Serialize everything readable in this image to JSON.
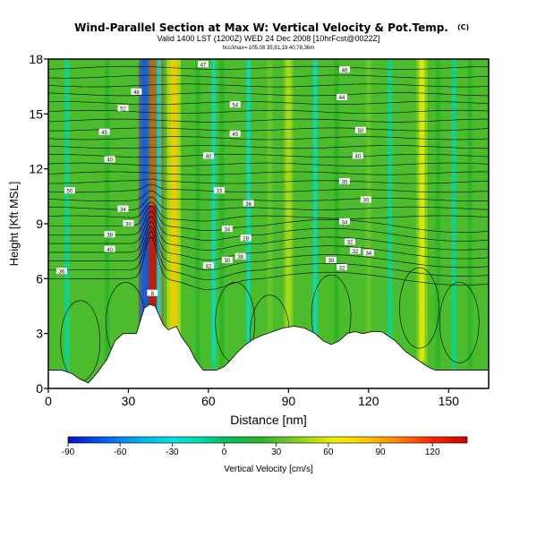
{
  "chart_data": {
    "type": "heatmap",
    "title": "Wind-Parallel Section at Max W: Vertical Velocity & Pot.Temp.",
    "title_suffix": "(C)",
    "subtitle": "Valid 1400 LST (1200Z) WED 24 Dec 2008 [10hrFcst@0022Z]",
    "subtitle2": "hcc/imax=-105,08 35,81,19 40,78,36m",
    "xlabel": "Distance [nm]",
    "ylabel": "Height [Kft MSL]",
    "xlim": [
      0,
      165
    ],
    "ylim": [
      0,
      18
    ],
    "x_ticks": [
      "0",
      "30",
      "60",
      "90",
      "120",
      "150"
    ],
    "y_ticks": [
      "0",
      "3",
      "6",
      "9",
      "12",
      "15",
      "18"
    ],
    "colorbar": {
      "label": "Vertical Velocity [cm/s]",
      "range": [
        -90,
        140
      ],
      "tick_labels": [
        "-90",
        "-60",
        "-30",
        "0",
        "30",
        "60",
        "90",
        "120"
      ]
    },
    "terrain_profile": {
      "x": [
        0,
        5,
        9,
        12,
        15,
        18,
        20,
        22,
        25,
        28,
        31,
        33,
        36,
        38,
        40,
        43,
        45,
        48,
        50,
        53,
        55,
        58,
        60,
        63,
        66,
        68,
        71,
        74,
        77,
        80,
        84,
        88,
        92,
        96,
        100,
        103,
        106,
        109,
        112,
        115,
        118,
        121,
        125,
        130,
        134,
        138,
        142,
        145,
        150,
        155,
        160,
        165
      ],
      "height_kft": [
        1.0,
        1.0,
        0.8,
        0.5,
        0.3,
        0.8,
        1.2,
        1.6,
        2.6,
        3.0,
        3.0,
        3.0,
        4.4,
        4.6,
        4.5,
        3.5,
        3.2,
        3.4,
        2.8,
        2.2,
        1.6,
        1.0,
        1.0,
        1.0,
        1.2,
        1.5,
        2.0,
        2.4,
        2.7,
        2.9,
        3.1,
        3.3,
        3.4,
        3.3,
        3.0,
        2.6,
        2.4,
        2.6,
        3.0,
        3.1,
        3.0,
        3.1,
        3.1,
        2.6,
        2.0,
        1.6,
        1.2,
        1.0,
        1.0,
        1.0,
        1.0,
        1.0
      ]
    },
    "updraft_columns": [
      {
        "x": 22,
        "w": 25
      },
      {
        "x": 38.5,
        "w": 135
      },
      {
        "x": 47,
        "w": 70
      },
      {
        "x": 56,
        "w": 15
      },
      {
        "x": 65,
        "w": 25
      },
      {
        "x": 83,
        "w": 30
      },
      {
        "x": 90,
        "w": 45
      },
      {
        "x": 108,
        "w": 25
      },
      {
        "x": 120,
        "w": 30
      },
      {
        "x": 140,
        "w": 55
      },
      {
        "x": 146,
        "w": 20
      },
      {
        "x": 158,
        "w": 25
      }
    ],
    "downdraft_columns": [
      {
        "x": 7,
        "w": -10
      },
      {
        "x": 36,
        "w": -55
      },
      {
        "x": 41.5,
        "w": -20
      },
      {
        "x": 62,
        "w": -15
      },
      {
        "x": 75,
        "w": -15
      },
      {
        "x": 100,
        "w": -15
      },
      {
        "x": 128,
        "w": -10
      },
      {
        "x": 152,
        "w": -10
      }
    ],
    "contour_labels": [
      {
        "x": 5,
        "y": 6.4,
        "text": "36"
      },
      {
        "x": 23,
        "y": 7.6,
        "text": "40"
      },
      {
        "x": 23,
        "y": 8.4,
        "text": "38"
      },
      {
        "x": 28,
        "y": 9.8,
        "text": "34"
      },
      {
        "x": 30,
        "y": 9.0,
        "text": "30"
      },
      {
        "x": 8,
        "y": 10.8,
        "text": "50"
      },
      {
        "x": 23,
        "y": 12.5,
        "text": "40"
      },
      {
        "x": 21,
        "y": 14.0,
        "text": "45"
      },
      {
        "x": 28,
        "y": 15.3,
        "text": "52"
      },
      {
        "x": 33,
        "y": 16.2,
        "text": "48"
      },
      {
        "x": 58,
        "y": 17.7,
        "text": "47"
      },
      {
        "x": 60,
        "y": 12.7,
        "text": "40"
      },
      {
        "x": 64,
        "y": 10.8,
        "text": "33"
      },
      {
        "x": 60,
        "y": 6.7,
        "text": "42"
      },
      {
        "x": 67,
        "y": 8.7,
        "text": "34"
      },
      {
        "x": 67,
        "y": 7.0,
        "text": "30"
      },
      {
        "x": 72,
        "y": 7.2,
        "text": "38"
      },
      {
        "x": 74,
        "y": 8.2,
        "text": "28"
      },
      {
        "x": 70,
        "y": 15.5,
        "text": "54"
      },
      {
        "x": 70,
        "y": 13.9,
        "text": "45"
      },
      {
        "x": 75,
        "y": 10.1,
        "text": "36"
      },
      {
        "x": 111,
        "y": 17.4,
        "text": "46"
      },
      {
        "x": 110,
        "y": 15.9,
        "text": "44"
      },
      {
        "x": 117,
        "y": 14.1,
        "text": "50"
      },
      {
        "x": 116,
        "y": 12.7,
        "text": "40"
      },
      {
        "x": 111,
        "y": 11.3,
        "text": "35"
      },
      {
        "x": 119,
        "y": 10.3,
        "text": "30"
      },
      {
        "x": 111,
        "y": 9.1,
        "text": "34"
      },
      {
        "x": 113,
        "y": 8.0,
        "text": "32"
      },
      {
        "x": 115,
        "y": 7.5,
        "text": "32"
      },
      {
        "x": 120,
        "y": 7.4,
        "text": "34"
      },
      {
        "x": 106,
        "y": 7.0,
        "text": "30"
      },
      {
        "x": 110,
        "y": 6.6,
        "text": "32"
      },
      {
        "x": 39,
        "y": 5.2,
        "text": "8"
      }
    ]
  }
}
